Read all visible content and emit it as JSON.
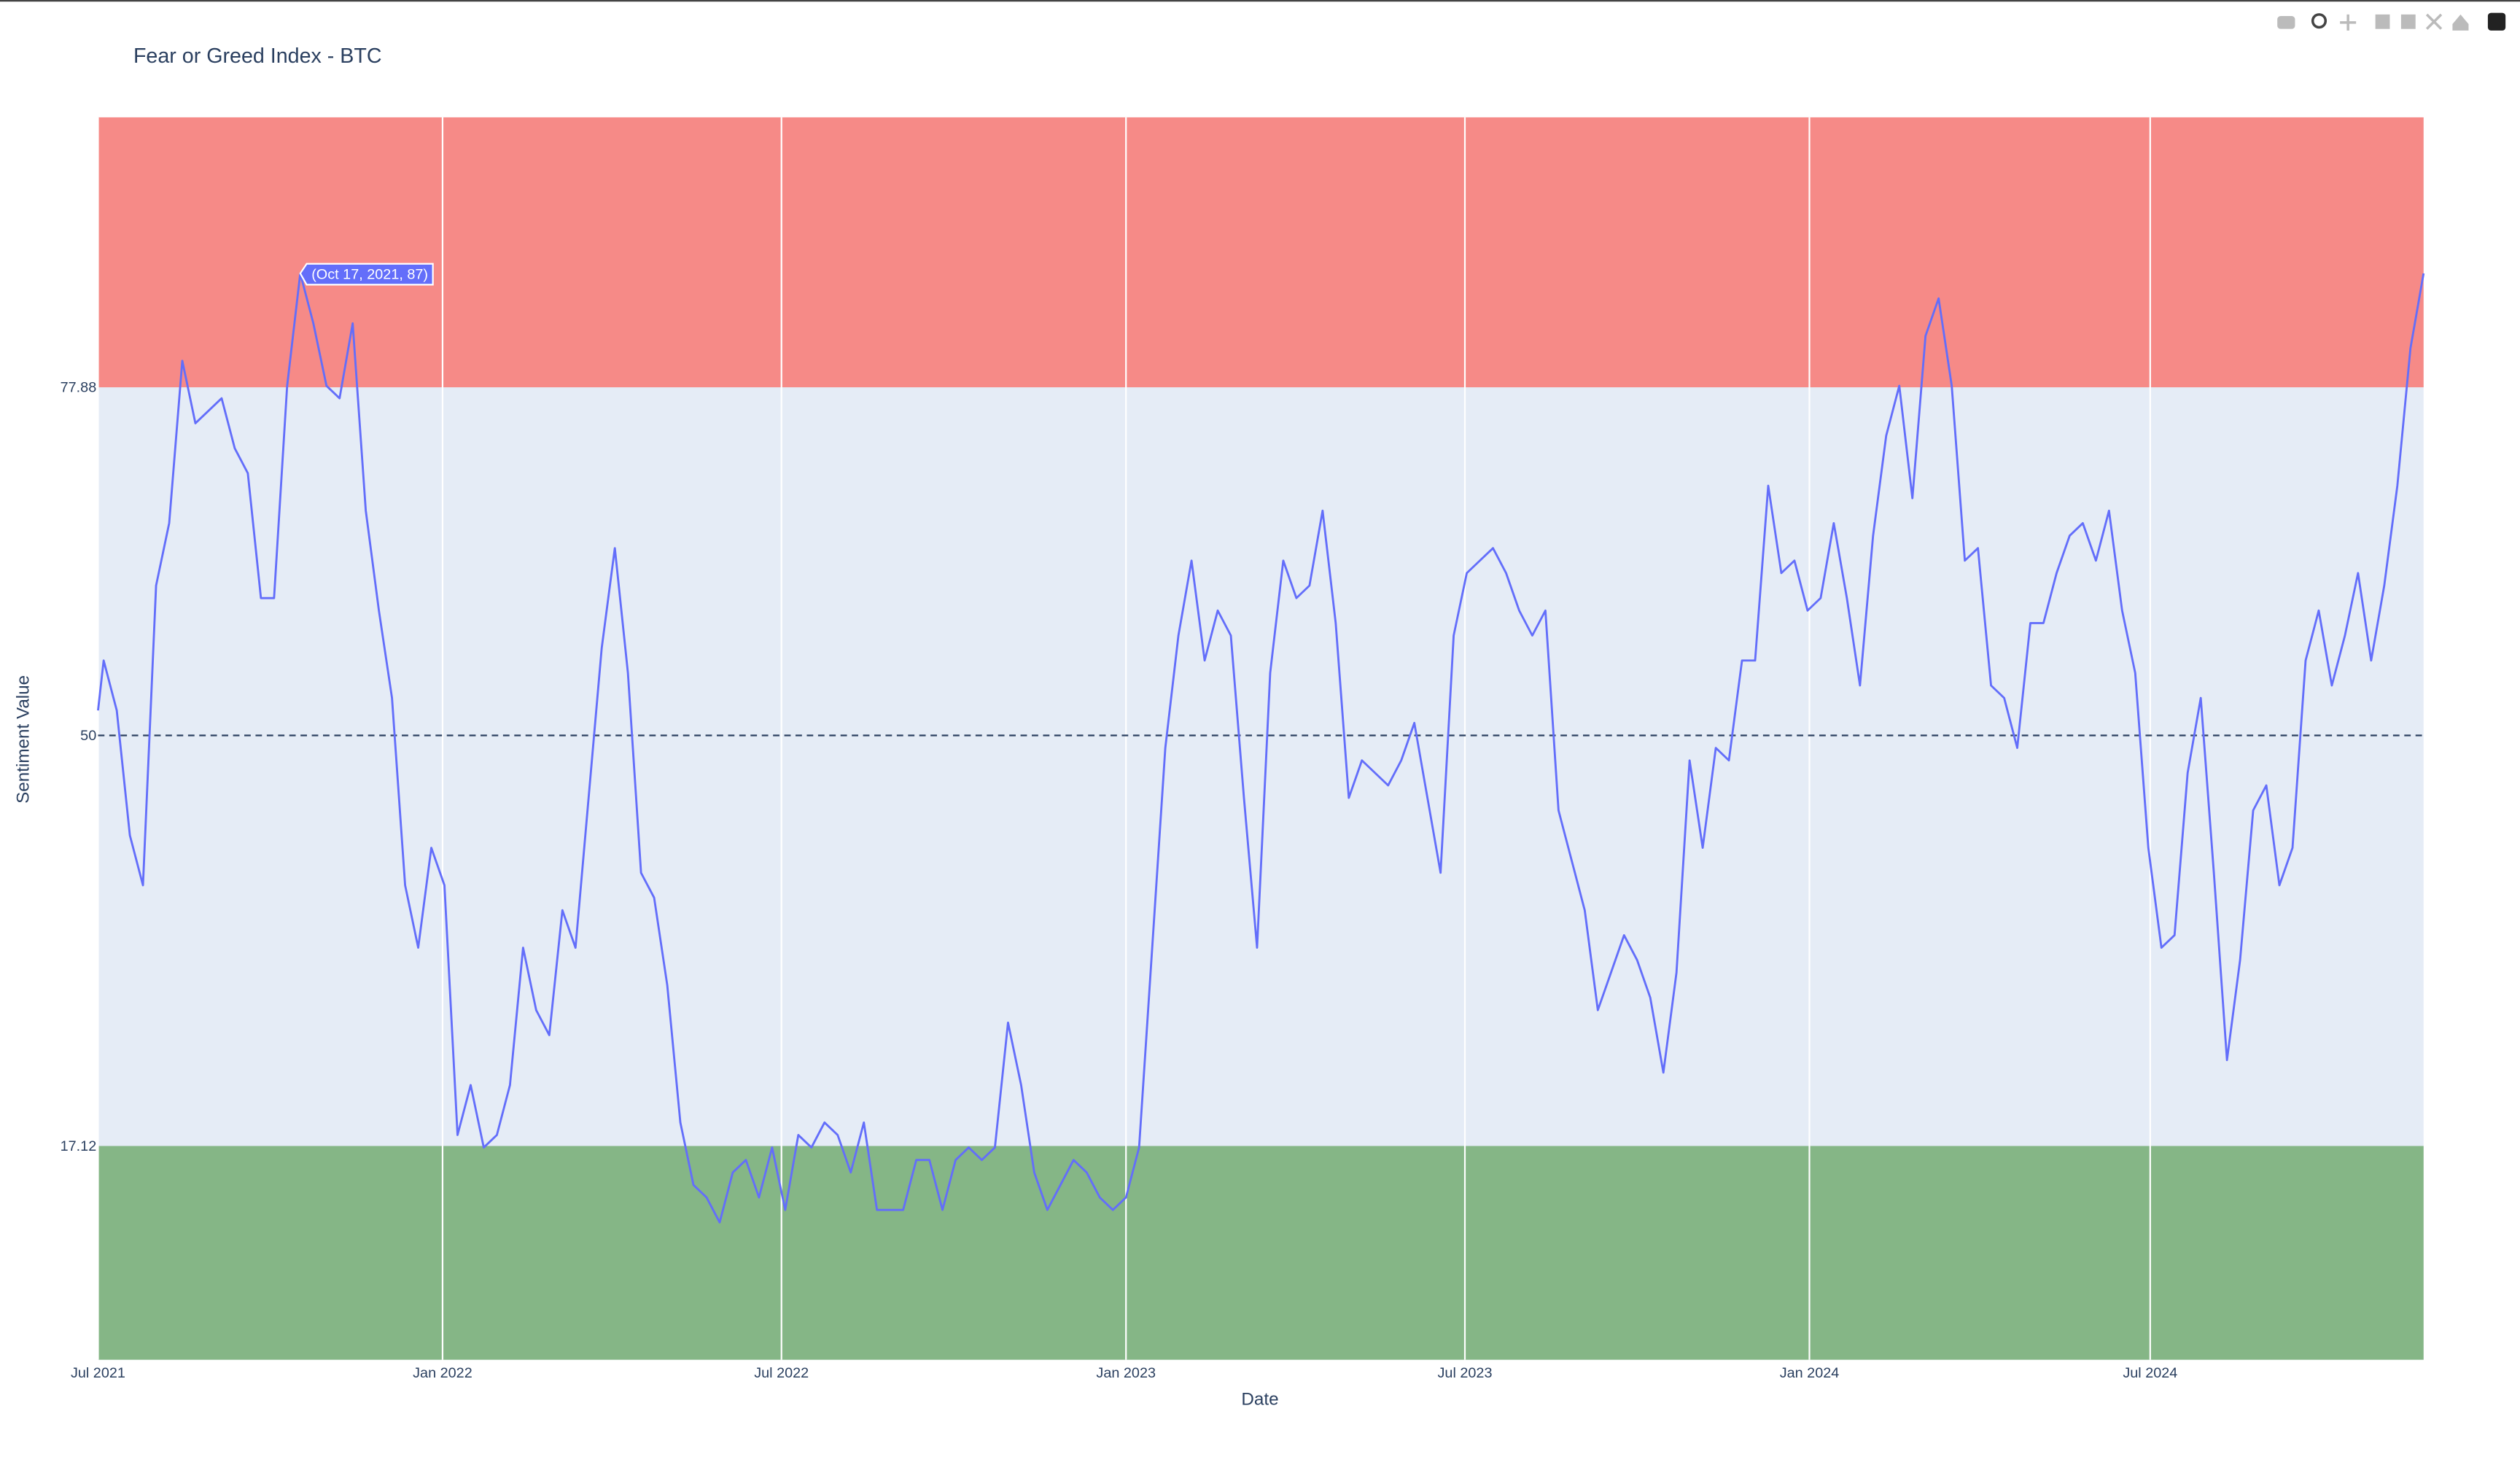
{
  "chart_data": {
    "type": "line",
    "title": "Fear or Greed Index - BTC",
    "x_label": "Date",
    "y_label": "Sentiment Value",
    "x": [
      "2021-07-01",
      "2021-07-04",
      "2021-07-11",
      "2021-07-18",
      "2021-07-25",
      "2021-08-01",
      "2021-08-08",
      "2021-08-15",
      "2021-08-22",
      "2021-08-29",
      "2021-09-05",
      "2021-09-12",
      "2021-09-19",
      "2021-09-26",
      "2021-10-03",
      "2021-10-10",
      "2021-10-17",
      "2021-10-24",
      "2021-10-31",
      "2021-11-07",
      "2021-11-14",
      "2021-11-21",
      "2021-11-28",
      "2021-12-05",
      "2021-12-12",
      "2021-12-19",
      "2021-12-26",
      "2022-01-02",
      "2022-01-09",
      "2022-01-16",
      "2022-01-23",
      "2022-01-30",
      "2022-02-06",
      "2022-02-13",
      "2022-02-20",
      "2022-02-27",
      "2022-03-06",
      "2022-03-13",
      "2022-03-20",
      "2022-03-27",
      "2022-04-03",
      "2022-04-10",
      "2022-04-17",
      "2022-04-24",
      "2022-05-01",
      "2022-05-08",
      "2022-05-15",
      "2022-05-22",
      "2022-05-29",
      "2022-06-05",
      "2022-06-12",
      "2022-06-19",
      "2022-06-26",
      "2022-07-03",
      "2022-07-10",
      "2022-07-17",
      "2022-07-24",
      "2022-07-31",
      "2022-08-07",
      "2022-08-14",
      "2022-08-21",
      "2022-08-28",
      "2022-09-04",
      "2022-09-11",
      "2022-09-18",
      "2022-09-25",
      "2022-10-02",
      "2022-10-09",
      "2022-10-16",
      "2022-10-23",
      "2022-10-30",
      "2022-11-06",
      "2022-11-13",
      "2022-11-20",
      "2022-11-27",
      "2022-12-04",
      "2022-12-11",
      "2022-12-18",
      "2022-12-25",
      "2023-01-01",
      "2023-01-08",
      "2023-01-15",
      "2023-01-22",
      "2023-01-29",
      "2023-02-05",
      "2023-02-12",
      "2023-02-19",
      "2023-02-26",
      "2023-03-05",
      "2023-03-12",
      "2023-03-19",
      "2023-03-26",
      "2023-04-02",
      "2023-04-09",
      "2023-04-16",
      "2023-04-23",
      "2023-04-30",
      "2023-05-07",
      "2023-05-14",
      "2023-05-21",
      "2023-05-28",
      "2023-06-04",
      "2023-06-11",
      "2023-06-18",
      "2023-06-25",
      "2023-07-02",
      "2023-07-09",
      "2023-07-16",
      "2023-07-23",
      "2023-07-30",
      "2023-08-06",
      "2023-08-13",
      "2023-08-20",
      "2023-08-27",
      "2023-09-03",
      "2023-09-10",
      "2023-09-17",
      "2023-09-24",
      "2023-10-01",
      "2023-10-08",
      "2023-10-15",
      "2023-10-22",
      "2023-10-29",
      "2023-11-05",
      "2023-11-12",
      "2023-11-19",
      "2023-11-26",
      "2023-12-03",
      "2023-12-10",
      "2023-12-17",
      "2023-12-24",
      "2023-12-31",
      "2024-01-07",
      "2024-01-14",
      "2024-01-21",
      "2024-01-28",
      "2024-02-04",
      "2024-02-11",
      "2024-02-18",
      "2024-02-25",
      "2024-03-03",
      "2024-03-10",
      "2024-03-17",
      "2024-03-24",
      "2024-03-31",
      "2024-04-07",
      "2024-04-14",
      "2024-04-21",
      "2024-04-28",
      "2024-05-05",
      "2024-05-12",
      "2024-05-19",
      "2024-05-26",
      "2024-06-02",
      "2024-06-09",
      "2024-06-16",
      "2024-06-23",
      "2024-06-30",
      "2024-07-07",
      "2024-07-14",
      "2024-07-21",
      "2024-07-28",
      "2024-08-04",
      "2024-08-11",
      "2024-08-18",
      "2024-08-25",
      "2024-09-01",
      "2024-09-08",
      "2024-09-15",
      "2024-09-22",
      "2024-09-29",
      "2024-10-06",
      "2024-10-13",
      "2024-10-20",
      "2024-10-27",
      "2024-11-03",
      "2024-11-10",
      "2024-11-17",
      "2024-11-24"
    ],
    "series": [
      {
        "name": "BTC",
        "color": "#636efa",
        "values": [
          52,
          56,
          52,
          42,
          38,
          62,
          67,
          80,
          75,
          76,
          77,
          73,
          71,
          61,
          61,
          78,
          87,
          83,
          78,
          77,
          83,
          68,
          60,
          53,
          38,
          33,
          41,
          38,
          18,
          22,
          17,
          18,
          22,
          33,
          28,
          26,
          36,
          33,
          45,
          57,
          65,
          55,
          39,
          37,
          30,
          19,
          14,
          13,
          11,
          15,
          16,
          13,
          17,
          12,
          18,
          17,
          19,
          18,
          15,
          19,
          12,
          12,
          12,
          16,
          16,
          12,
          16,
          17,
          16,
          17,
          27,
          22,
          15,
          12,
          14,
          16,
          15,
          13,
          12,
          13,
          17,
          33,
          49,
          58,
          64,
          56,
          60,
          58,
          45,
          33,
          55,
          64,
          61,
          62,
          68,
          59,
          45,
          48,
          47,
          46,
          48,
          51,
          45,
          39,
          58,
          63,
          64,
          65,
          63,
          60,
          58,
          60,
          44,
          40,
          36,
          28,
          31,
          34,
          32,
          29,
          23,
          31,
          48,
          41,
          49,
          48,
          56,
          56,
          70,
          63,
          64,
          60,
          61,
          67,
          61,
          54,
          66,
          74,
          78,
          69,
          82,
          85,
          78,
          64,
          65,
          54,
          53,
          49,
          59,
          59,
          63,
          66,
          67,
          64,
          68,
          60,
          55,
          41,
          33,
          34,
          47,
          53,
          39,
          24,
          32,
          44,
          46,
          38,
          41,
          56,
          60,
          54,
          58,
          63,
          56,
          62,
          70,
          81,
          87
        ]
      }
    ],
    "xlim": [
      "2021-07-01",
      "2024-11-24"
    ],
    "xticks": [
      {
        "value": "2021-07-01",
        "label": "Jul 2021"
      },
      {
        "value": "2022-01-01",
        "label": "Jan 2022"
      },
      {
        "value": "2022-07-01",
        "label": "Jul 2022"
      },
      {
        "value": "2023-01-01",
        "label": "Jan 2023"
      },
      {
        "value": "2023-07-01",
        "label": "Jul 2023"
      },
      {
        "value": "2024-01-01",
        "label": "Jan 2024"
      },
      {
        "value": "2024-07-01",
        "label": "Jul 2024"
      }
    ],
    "ylim": [
      0,
      99.5
    ],
    "yticks": [
      17.12,
      50,
      77.88
    ],
    "grid": "x",
    "plot_bg": "#e5ecf6",
    "bands": [
      {
        "range": [
          0,
          17.12
        ],
        "color": "#85b686"
      },
      {
        "range": [
          77.88,
          99.5
        ],
        "color": "#f68a87"
      }
    ],
    "hline": {
      "value": 50,
      "dash": true
    },
    "hover": {
      "text": "(Oct 17, 2021, 87)",
      "x": "2021-10-17",
      "y": 87
    }
  }
}
